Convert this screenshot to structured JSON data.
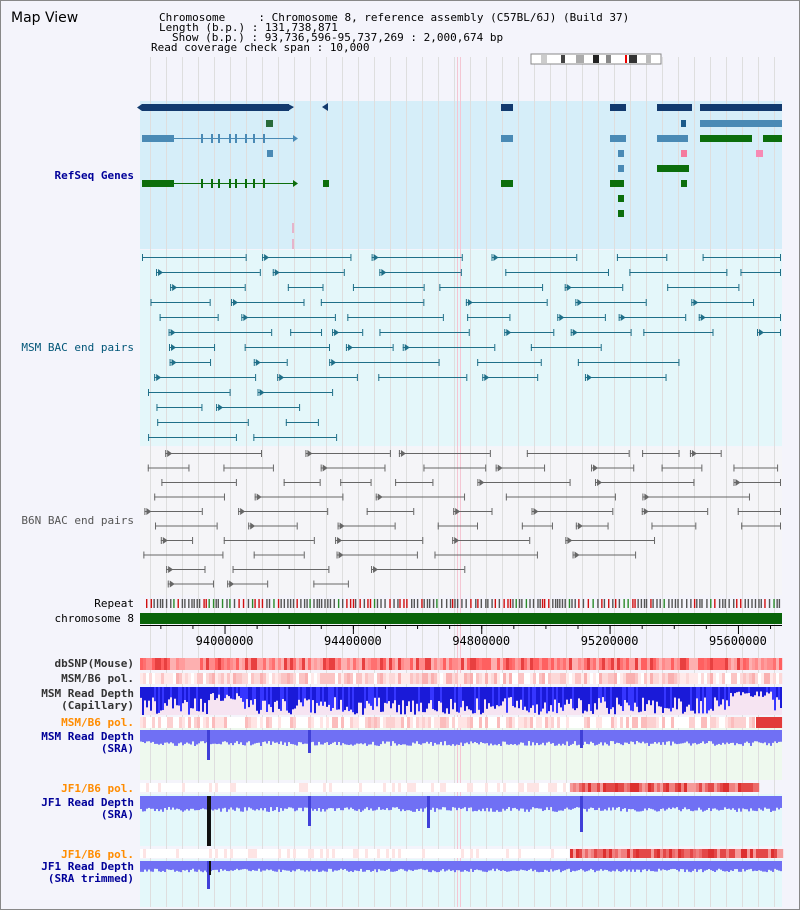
{
  "window": {
    "title": "Map View"
  },
  "header": {
    "chromosome_label": "Chromosome     : ",
    "chromosome_value": "Chromosome 8, reference assembly (C57BL/6J) (Build 37)",
    "length_label": "Length (b.p.) : ",
    "length_value": "131,738,871",
    "show_label": "Show (b.p.) : ",
    "show_value": "93,736,596-95,737,269 : 2,000,674 bp",
    "coverage_label": "Read coverage check span : ",
    "coverage_value": "10,000"
  },
  "tracks": {
    "refseq": {
      "label": "RefSeq Genes",
      "color": "#000099"
    },
    "msm_bac": {
      "label": "MSM BAC end pairs",
      "color": "#005577"
    },
    "b6n_bac": {
      "label": "B6N BAC end pairs",
      "color": "#555555"
    },
    "repeat": {
      "label": "Repeat"
    },
    "chromosome": {
      "label": "chromosome 8"
    },
    "dbsnp": {
      "label": "dbSNP(Mouse)"
    },
    "msm_b6_pol": {
      "label": "MSM/B6 pol."
    },
    "msm_read_depth_cap": {
      "label": "MSM Read Depth",
      "sub": "(Capillary)"
    },
    "msm_b6_pol2": {
      "label": "MSM/B6 pol.",
      "color": "#ff8c00"
    },
    "msm_read_depth_sra": {
      "label": "MSM Read Depth",
      "sub": "(SRA)"
    },
    "jf1_b6_pol": {
      "label": "JF1/B6 pol.",
      "color": "#ff8c00"
    },
    "jf1_read_depth_sra": {
      "label": "JF1 Read Depth",
      "sub": "(SRA)"
    },
    "jf1_b6_pol2": {
      "label": "JF1/B6 pol.",
      "color": "#ff8c00"
    },
    "jf1_read_depth_trim": {
      "label": "JF1 Read Depth",
      "sub": "(SRA trimmed)"
    }
  },
  "axis": {
    "range_start": 93736596,
    "range_end": 95737269,
    "ticks": [
      {
        "value": 94000000,
        "label": "94000000"
      },
      {
        "value": 94400000,
        "label": "94400000"
      },
      {
        "value": 94800000,
        "label": "94800000"
      },
      {
        "value": 95200000,
        "label": "95200000"
      },
      {
        "value": 95600000,
        "label": "95600000"
      }
    ]
  }
}
